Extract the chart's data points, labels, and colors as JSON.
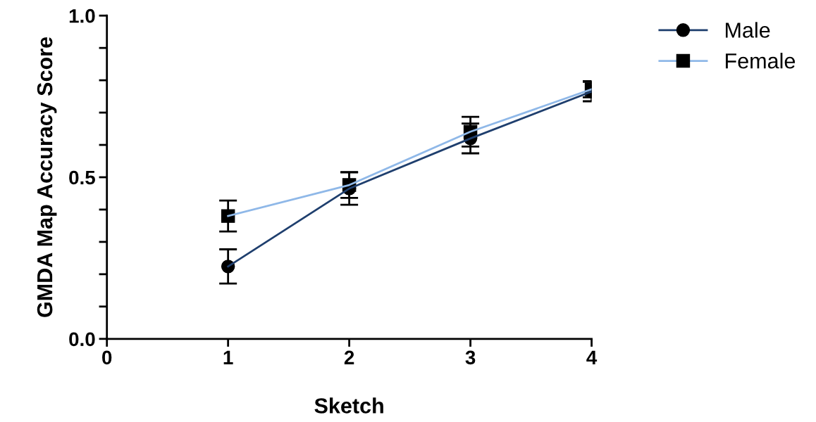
{
  "chart_data": {
    "type": "line",
    "xlabel": "Sketch",
    "ylabel": "GMDA Map Accuracy Score",
    "x": [
      1,
      2,
      3,
      4
    ],
    "xlim": [
      0,
      4
    ],
    "xticks": [
      0,
      1,
      2,
      3,
      4
    ],
    "ylim": [
      0,
      1.0
    ],
    "yticks": [
      {
        "value": 0,
        "label": "0.0"
      },
      {
        "value": 0.1,
        "label": null
      },
      {
        "value": 0.2,
        "label": null
      },
      {
        "value": 0.3,
        "label": null
      },
      {
        "value": 0.4,
        "label": null
      },
      {
        "value": 0.5,
        "label": "0.5"
      },
      {
        "value": 0.6,
        "label": null
      },
      {
        "value": 0.7,
        "label": null
      },
      {
        "value": 0.8,
        "label": null
      },
      {
        "value": 0.9,
        "label": null
      },
      {
        "value": 1.0,
        "label": "1.0"
      }
    ],
    "grid": false,
    "legend": "top right",
    "series": [
      {
        "name": "Male",
        "color": "#1f3f6e",
        "marker": "circle",
        "values": [
          0.224,
          0.465,
          0.62,
          0.765
        ],
        "errors": [
          0.053,
          0.05,
          0.046,
          0.03
        ]
      },
      {
        "name": "Female",
        "color": "#8fb8e8",
        "marker": "square",
        "values": [
          0.38,
          0.476,
          0.641,
          0.772
        ],
        "errors": [
          0.048,
          0.04,
          0.046,
          0.025
        ]
      }
    ]
  }
}
